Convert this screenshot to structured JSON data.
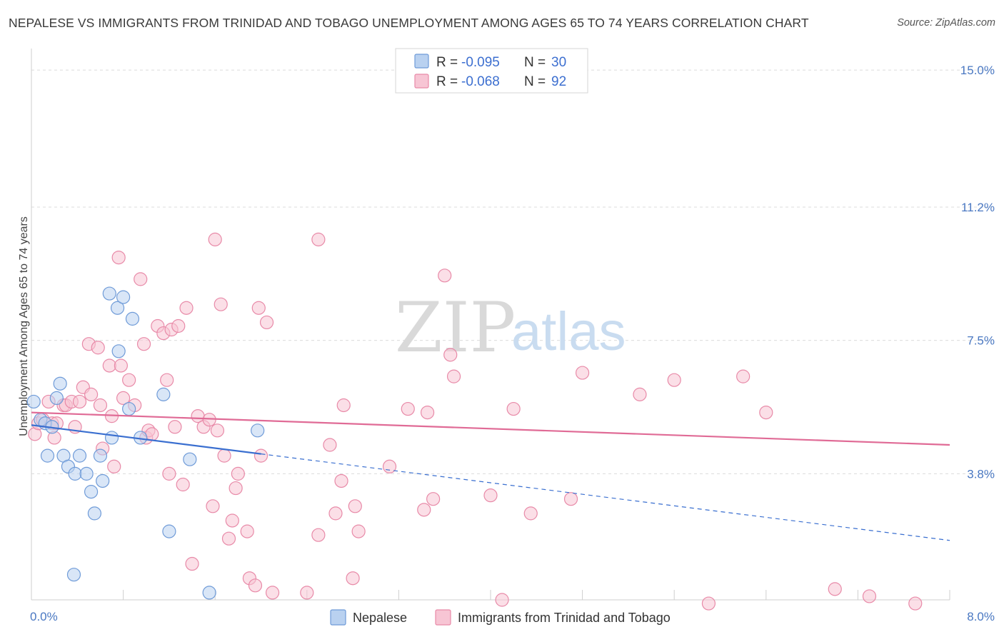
{
  "title": "NEPALESE VS IMMIGRANTS FROM TRINIDAD AND TOBAGO UNEMPLOYMENT AMONG AGES 65 TO 74 YEARS CORRELATION CHART",
  "source": "Source: ZipAtlas.com",
  "watermark": {
    "zip": "ZIP",
    "atlas": "atlas"
  },
  "colors": {
    "nepalese_fill": "#b9d1f0",
    "nepalese_stroke": "#6f9bd8",
    "nepalese_line": "#3a6fd0",
    "trinidad_fill": "#f7c5d4",
    "trinidad_stroke": "#e88aa8",
    "trinidad_line": "#e06b96",
    "tick_label": "#4a78c2"
  },
  "legend": {
    "r_label": "R =",
    "n_label": "N =",
    "rows": [
      {
        "r": "-0.095",
        "n": "30"
      },
      {
        "r": "-0.068",
        "n": "92"
      }
    ]
  },
  "chart_data": {
    "type": "scatter",
    "ylabel": "Unemployment Among Ages 65 to 74 years",
    "xlim": [
      0,
      8.0
    ],
    "ylim": [
      0.3,
      15.4
    ],
    "x_tick_labels": [
      {
        "value": 0,
        "label": "0.0%"
      },
      {
        "value": 8.0,
        "label": "8.0%"
      }
    ],
    "y_tick_labels": [
      {
        "value": 3.8,
        "label": "3.8%"
      },
      {
        "value": 7.5,
        "label": "7.5%"
      },
      {
        "value": 11.2,
        "label": "11.2%"
      },
      {
        "value": 15.0,
        "label": "15.0%"
      }
    ],
    "series": [
      {
        "name": "Nepalese",
        "points": [
          [
            0.02,
            5.8
          ],
          [
            0.08,
            5.3
          ],
          [
            0.12,
            5.2
          ],
          [
            0.14,
            4.3
          ],
          [
            0.18,
            5.1
          ],
          [
            0.22,
            5.9
          ],
          [
            0.25,
            6.3
          ],
          [
            0.28,
            4.3
          ],
          [
            0.32,
            4.0
          ],
          [
            0.38,
            3.8
          ],
          [
            0.42,
            4.3
          ],
          [
            0.48,
            3.8
          ],
          [
            0.52,
            3.3
          ],
          [
            0.55,
            2.7
          ],
          [
            0.6,
            4.3
          ],
          [
            0.62,
            3.6
          ],
          [
            0.68,
            8.8
          ],
          [
            0.7,
            4.8
          ],
          [
            0.75,
            8.4
          ],
          [
            0.76,
            7.2
          ],
          [
            0.8,
            8.7
          ],
          [
            0.85,
            5.6
          ],
          [
            0.88,
            8.1
          ],
          [
            0.95,
            4.8
          ],
          [
            1.15,
            6.0
          ],
          [
            1.2,
            2.2
          ],
          [
            1.38,
            4.2
          ],
          [
            1.55,
            0.5
          ],
          [
            1.97,
            5.0
          ],
          [
            0.37,
            1.0
          ]
        ]
      },
      {
        "name": "Immigrants from Trinidad and Tobago",
        "points": [
          [
            0.03,
            4.9
          ],
          [
            0.06,
            5.2
          ],
          [
            0.1,
            5.3
          ],
          [
            0.15,
            5.8
          ],
          [
            0.18,
            5.2
          ],
          [
            0.2,
            4.8
          ],
          [
            0.22,
            5.2
          ],
          [
            0.28,
            5.7
          ],
          [
            0.3,
            5.7
          ],
          [
            0.35,
            5.8
          ],
          [
            0.38,
            5.1
          ],
          [
            0.42,
            5.8
          ],
          [
            0.45,
            6.2
          ],
          [
            0.5,
            7.4
          ],
          [
            0.52,
            6.0
          ],
          [
            0.58,
            7.3
          ],
          [
            0.6,
            5.7
          ],
          [
            0.62,
            4.5
          ],
          [
            0.68,
            6.8
          ],
          [
            0.7,
            5.4
          ],
          [
            0.72,
            4.0
          ],
          [
            0.76,
            9.8
          ],
          [
            0.78,
            6.8
          ],
          [
            0.8,
            5.9
          ],
          [
            0.85,
            6.4
          ],
          [
            0.9,
            5.7
          ],
          [
            0.95,
            9.2
          ],
          [
            0.98,
            7.4
          ],
          [
            1.0,
            4.8
          ],
          [
            1.02,
            5.0
          ],
          [
            1.05,
            4.9
          ],
          [
            1.1,
            7.9
          ],
          [
            1.15,
            7.7
          ],
          [
            1.18,
            6.4
          ],
          [
            1.2,
            3.8
          ],
          [
            1.22,
            7.8
          ],
          [
            1.25,
            5.1
          ],
          [
            1.28,
            7.9
          ],
          [
            1.32,
            3.5
          ],
          [
            1.35,
            8.4
          ],
          [
            1.4,
            1.3
          ],
          [
            1.45,
            5.4
          ],
          [
            1.5,
            5.1
          ],
          [
            1.55,
            5.3
          ],
          [
            1.58,
            2.9
          ],
          [
            1.6,
            10.3
          ],
          [
            1.62,
            5.0
          ],
          [
            1.65,
            8.5
          ],
          [
            1.68,
            4.3
          ],
          [
            1.72,
            2.0
          ],
          [
            1.75,
            2.5
          ],
          [
            1.78,
            3.4
          ],
          [
            1.8,
            3.8
          ],
          [
            1.88,
            2.2
          ],
          [
            1.9,
            0.9
          ],
          [
            1.95,
            0.7
          ],
          [
            1.98,
            8.4
          ],
          [
            2.0,
            4.3
          ],
          [
            2.05,
            8.0
          ],
          [
            2.1,
            0.5
          ],
          [
            2.4,
            0.5
          ],
          [
            2.5,
            10.3
          ],
          [
            2.5,
            2.1
          ],
          [
            2.6,
            4.6
          ],
          [
            2.65,
            2.7
          ],
          [
            2.7,
            3.6
          ],
          [
            2.72,
            5.7
          ],
          [
            2.8,
            0.9
          ],
          [
            2.82,
            2.9
          ],
          [
            2.85,
            2.2
          ],
          [
            3.12,
            4.0
          ],
          [
            3.28,
            5.6
          ],
          [
            3.42,
            2.8
          ],
          [
            3.45,
            5.5
          ],
          [
            3.5,
            3.1
          ],
          [
            3.6,
            9.3
          ],
          [
            3.65,
            7.1
          ],
          [
            3.68,
            6.5
          ],
          [
            4.0,
            3.2
          ],
          [
            4.1,
            0.3
          ],
          [
            4.2,
            5.6
          ],
          [
            4.35,
            2.7
          ],
          [
            4.7,
            3.1
          ],
          [
            4.8,
            6.6
          ],
          [
            5.3,
            6.0
          ],
          [
            5.6,
            6.4
          ],
          [
            5.9,
            0.2
          ],
          [
            6.2,
            6.5
          ],
          [
            6.4,
            5.5
          ],
          [
            7.0,
            0.6
          ],
          [
            7.3,
            0.4
          ],
          [
            7.7,
            0.2
          ]
        ]
      }
    ],
    "trendlines": [
      {
        "series": "Nepalese",
        "solid": [
          [
            0.0,
            5.15
          ],
          [
            2.0,
            4.35
          ]
        ],
        "dashed": [
          [
            2.0,
            4.35
          ],
          [
            8.0,
            1.95
          ]
        ]
      },
      {
        "series": "Immigrants from Trinidad and Tobago",
        "solid": [
          [
            0.0,
            5.5
          ],
          [
            8.0,
            4.6
          ]
        ]
      }
    ],
    "legend_entries": [
      "Nepalese",
      "Immigrants from Trinidad and Tobago"
    ],
    "grid": true
  }
}
